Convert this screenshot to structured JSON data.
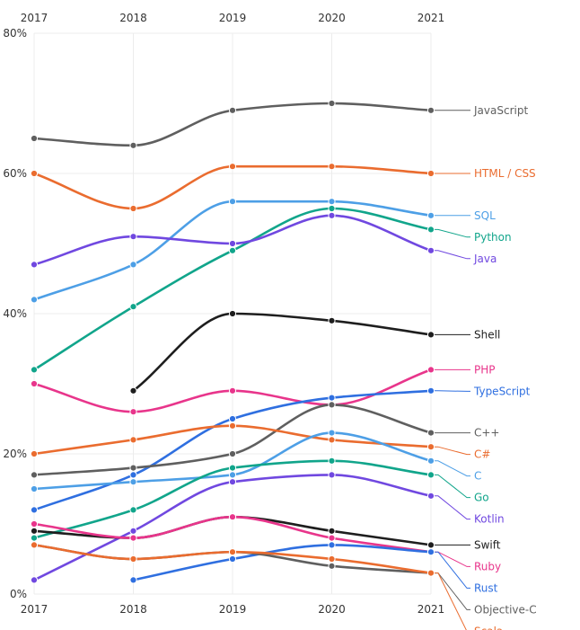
{
  "chart_data": {
    "type": "line",
    "title": "",
    "xlabel": "",
    "ylabel": "",
    "x": [
      2017,
      2018,
      2019,
      2020,
      2021
    ],
    "x_tick_labels": [
      "2017",
      "2018",
      "2019",
      "2020",
      "2021"
    ],
    "ylim": [
      0,
      80
    ],
    "y_ticks": [
      0,
      20,
      40,
      60,
      80
    ],
    "y_tick_labels": [
      "0%",
      "20%",
      "40%",
      "60%",
      "80%"
    ],
    "grid": true,
    "series": [
      {
        "name": "JavaScript",
        "color": "#5f5f5f",
        "values": [
          65.0,
          64.0,
          69.0,
          70.0,
          69.0
        ]
      },
      {
        "name": "HTML / CSS",
        "color": "#ea6c2f",
        "values": [
          60.0,
          55.0,
          61.0,
          61.0,
          60.0
        ]
      },
      {
        "name": "SQL",
        "color": "#4d9fe6",
        "values": [
          42.0,
          47.0,
          56.0,
          56.0,
          54.0
        ]
      },
      {
        "name": "Python",
        "color": "#11a58b",
        "values": [
          32.0,
          41.0,
          49.0,
          55.0,
          52.0
        ]
      },
      {
        "name": "Java",
        "color": "#7048e0",
        "values": [
          47.0,
          51.0,
          50.0,
          54.0,
          49.0
        ]
      },
      {
        "name": "Shell",
        "color": "#1e1e1e",
        "values": [
          null,
          29.0,
          40.0,
          39.0,
          37.0
        ]
      },
      {
        "name": "PHP",
        "color": "#e8358b",
        "values": [
          30.0,
          26.0,
          29.0,
          27.0,
          32.0
        ]
      },
      {
        "name": "TypeScript",
        "color": "#2f6fe0",
        "values": [
          12.0,
          17.0,
          25.0,
          28.0,
          29.0
        ]
      },
      {
        "name": "C++",
        "color": "#5f5f5f",
        "values": [
          17.0,
          18.0,
          20.0,
          27.0,
          23.0
        ]
      },
      {
        "name": "C#",
        "color": "#ea6c2f",
        "values": [
          20.0,
          22.0,
          24.0,
          22.0,
          21.0
        ]
      },
      {
        "name": "C",
        "color": "#4d9fe6",
        "values": [
          15.0,
          16.0,
          17.0,
          23.0,
          19.0
        ]
      },
      {
        "name": "Go",
        "color": "#11a58b",
        "values": [
          8.0,
          12.0,
          18.0,
          19.0,
          17.0
        ]
      },
      {
        "name": "Kotlin",
        "color": "#7048e0",
        "values": [
          2.0,
          9.0,
          16.0,
          17.0,
          14.0
        ]
      },
      {
        "name": "Swift",
        "color": "#1e1e1e",
        "values": [
          9.0,
          8.0,
          11.0,
          9.0,
          7.0
        ]
      },
      {
        "name": "Ruby",
        "color": "#e8358b",
        "values": [
          10.0,
          8.0,
          11.0,
          8.0,
          6.0
        ]
      },
      {
        "name": "Rust",
        "color": "#2f6fe0",
        "values": [
          null,
          2.0,
          5.0,
          7.0,
          6.0
        ]
      },
      {
        "name": "Objective-C",
        "color": "#5f5f5f",
        "values": [
          7.0,
          5.0,
          6.0,
          4.0,
          3.0
        ]
      },
      {
        "name": "Scala",
        "color": "#ea6c2f",
        "values": [
          7.0,
          5.0,
          6.0,
          5.0,
          3.0
        ]
      }
    ],
    "legend": "right-end labels"
  }
}
